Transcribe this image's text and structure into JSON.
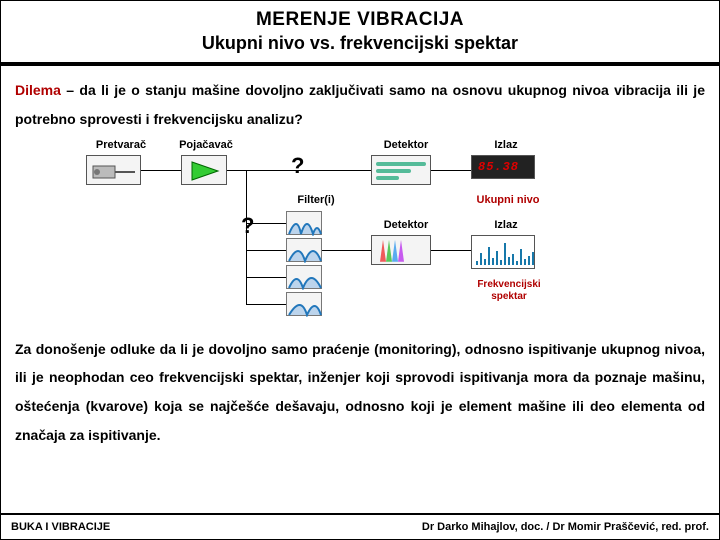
{
  "header": {
    "line1": "MERENJE VIBRACIJA",
    "line2": "Ukupni nivo vs. frekvencijski spektar"
  },
  "para1_dilema": "Dilema",
  "para1_rest": " – da li je o stanju mašine dovoljno zaključivati samo na osnovu ukupnog nivoa vibracija ili je potrebno sprovesti i frekvencijsku analizu?",
  "diagram": {
    "labels": {
      "pretvarac": "Pretvarač",
      "pojacavac": "Pojačavač",
      "detektor1": "Detektor",
      "izlaz1": "Izlaz",
      "filter": "Filter(i)",
      "detektor2": "Detektor",
      "izlaz2": "Izlaz",
      "ukupni": "Ukupni nivo",
      "frekv": "Frekvencijski spektar",
      "q1": "?",
      "q2": "?"
    },
    "display_value": "85.38",
    "colors": {
      "node_border": "#555555",
      "node_bg": "#f4f4f4",
      "accent_red": "#b00000",
      "chart_blue": "#1778aa",
      "filter_curve": "#2277bb"
    },
    "spectrum_bars": [
      4,
      12,
      6,
      18,
      7,
      14,
      5,
      22,
      8,
      11,
      4,
      16,
      6,
      9,
      13
    ],
    "filter_peaks": [
      {
        "x": 8,
        "w": 6,
        "c": "#e33"
      },
      {
        "x": 14,
        "w": 6,
        "c": "#3b3"
      },
      {
        "x": 20,
        "w": 6,
        "c": "#39e"
      },
      {
        "x": 26,
        "w": 6,
        "c": "#b3e"
      }
    ]
  },
  "para2": "Za donošenje odluke da li je dovoljno samo praćenje (monitoring), odnosno ispitivanje ukupnog nivoa, ili je neophodan ceo frekvencijski spektar, inženjer koji sprovodi ispitivanja mora da poznaje mašinu, oštećenja (kvarove) koja se najčešće dešavaju, odnosno koji je element mašine ili deo elementa od značaja za ispitivanje.",
  "footer": {
    "left": "BUKA I VIBRACIJE",
    "right": "Dr Darko Mihajlov, doc. / Dr Momir Praščević, red. prof."
  }
}
